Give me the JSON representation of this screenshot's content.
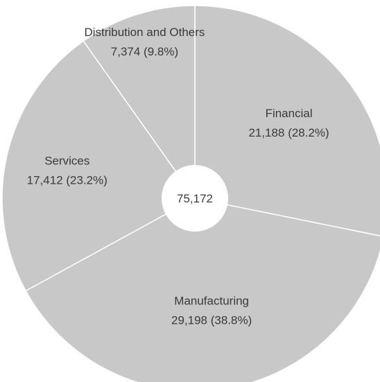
{
  "chart_data": {
    "type": "pie",
    "total": "75,172",
    "slices": [
      {
        "name": "Financial",
        "value": 21188,
        "label": "21,188 (28.2%)"
      },
      {
        "name": "Manufacturing",
        "value": 29198,
        "label": "29,198 (38.8%)"
      },
      {
        "name": "Services",
        "value": 17412,
        "label": "17,412 (23.2%)"
      },
      {
        "name": "Distribution and Others",
        "value": 7374,
        "label": "7,374 (9.8%)"
      }
    ],
    "colors": {
      "slice": "#c8c8c8",
      "separator": "#ffffff",
      "text": "#3a3a3a"
    },
    "start_angle": "12 o'clock",
    "direction": "clockwise"
  }
}
